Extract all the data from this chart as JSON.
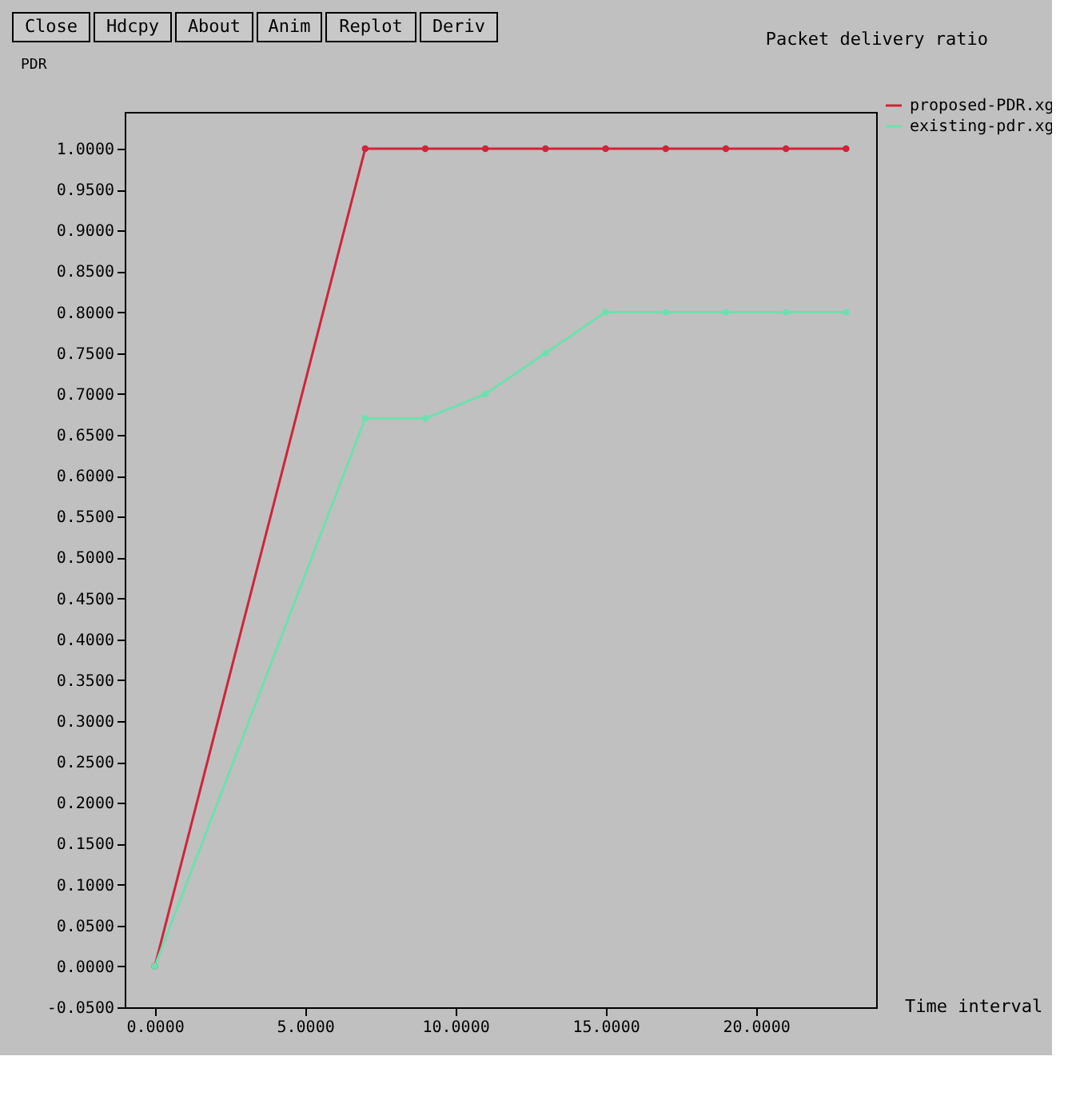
{
  "chart_data": {
    "type": "line",
    "title": "Packet delivery ratio",
    "xlabel": "Time interval",
    "ylabel": "PDR",
    "annotations": [
      "Close",
      "Hdcpy",
      "About",
      "Anim",
      "Replot",
      "Deriv"
    ],
    "x": [
      0,
      7,
      9,
      11,
      13,
      15,
      17,
      19,
      21,
      23
    ],
    "series": [
      {
        "name": "proposed-PDR.xg",
        "color": "#d0243c",
        "values": [
          0,
          1.0,
          1.0,
          1.0,
          1.0,
          1.0,
          1.0,
          1.0,
          1.0,
          1.0
        ]
      },
      {
        "name": "existing-pdr.xg",
        "color": "#6ee0b0",
        "values": [
          0,
          0.67,
          0.67,
          0.7,
          0.75,
          0.8,
          0.8,
          0.8,
          0.8,
          0.8
        ]
      }
    ],
    "xlim": [
      -1,
      24
    ],
    "ylim": [
      -0.05,
      1.045
    ],
    "xticks": [
      {
        "value": 0,
        "label": "0.0000"
      },
      {
        "value": 5,
        "label": "5.0000"
      },
      {
        "value": 10,
        "label": "10.0000"
      },
      {
        "value": 15,
        "label": "15.0000"
      },
      {
        "value": 20,
        "label": "20.0000"
      }
    ],
    "yticks": [
      {
        "value": -0.05,
        "label": "-0.0500"
      },
      {
        "value": 0,
        "label": "0.0000"
      },
      {
        "value": 0.05,
        "label": "0.0500"
      },
      {
        "value": 0.1,
        "label": "0.1000"
      },
      {
        "value": 0.15,
        "label": "0.1500"
      },
      {
        "value": 0.2,
        "label": "0.2000"
      },
      {
        "value": 0.25,
        "label": "0.2500"
      },
      {
        "value": 0.3,
        "label": "0.3000"
      },
      {
        "value": 0.35,
        "label": "0.3500"
      },
      {
        "value": 0.4,
        "label": "0.4000"
      },
      {
        "value": 0.45,
        "label": "0.4500"
      },
      {
        "value": 0.5,
        "label": "0.5000"
      },
      {
        "value": 0.55,
        "label": "0.5500"
      },
      {
        "value": 0.6,
        "label": "0.6000"
      },
      {
        "value": 0.65,
        "label": "0.6500"
      },
      {
        "value": 0.7,
        "label": "0.7000"
      },
      {
        "value": 0.75,
        "label": "0.7500"
      },
      {
        "value": 0.8,
        "label": "0.8000"
      },
      {
        "value": 0.85,
        "label": "0.8500"
      },
      {
        "value": 0.9,
        "label": "0.9000"
      },
      {
        "value": 0.95,
        "label": "0.9500"
      },
      {
        "value": 1.0,
        "label": "1.0000"
      }
    ],
    "grid": false,
    "legend": "top right",
    "marker": "circle",
    "line_style": "solid"
  }
}
